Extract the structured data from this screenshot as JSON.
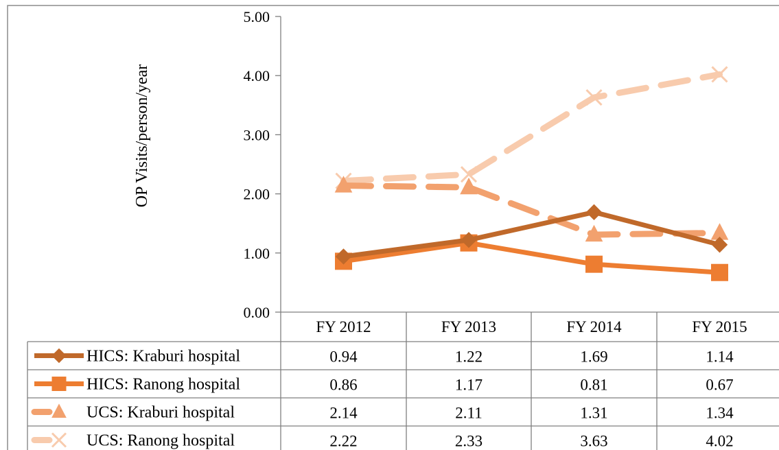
{
  "chart_data": {
    "type": "line",
    "title": "",
    "xlabel": "",
    "ylabel": "OP Visits/person/year",
    "ylim": [
      0,
      5
    ],
    "y_ticks": [
      "0.00",
      "1.00",
      "2.00",
      "3.00",
      "4.00",
      "5.00"
    ],
    "categories": [
      "FY 2012",
      "FY 2013",
      "FY 2014",
      "FY 2015"
    ],
    "legend_placement": "data-table",
    "grid": false,
    "series": [
      {
        "name": "HICS: Kraburi hospital",
        "values": [
          0.94,
          1.22,
          1.69,
          1.14
        ],
        "labels": [
          "0.94",
          "1.22",
          "1.69",
          "1.14"
        ],
        "color": "#C0692A",
        "marker": "diamond",
        "dash": "solid"
      },
      {
        "name": "HICS: Ranong hospital",
        "values": [
          0.86,
          1.17,
          0.81,
          0.67
        ],
        "labels": [
          "0.86",
          "1.17",
          "0.81",
          "0.67"
        ],
        "color": "#ED7D31",
        "marker": "square",
        "dash": "solid"
      },
      {
        "name": "UCS: Kraburi hospital",
        "values": [
          2.14,
          2.11,
          1.31,
          1.34
        ],
        "labels": [
          "2.14",
          "2.11",
          "1.31",
          "1.34"
        ],
        "color": "#F2A16E",
        "marker": "triangle",
        "dash": "dashed"
      },
      {
        "name": "UCS: Ranong hospital",
        "values": [
          2.22,
          2.33,
          3.63,
          4.02
        ],
        "labels": [
          "2.22",
          "2.33",
          "3.63",
          "4.02"
        ],
        "color": "#F8CBAD",
        "marker": "x",
        "dash": "dashed"
      }
    ]
  }
}
